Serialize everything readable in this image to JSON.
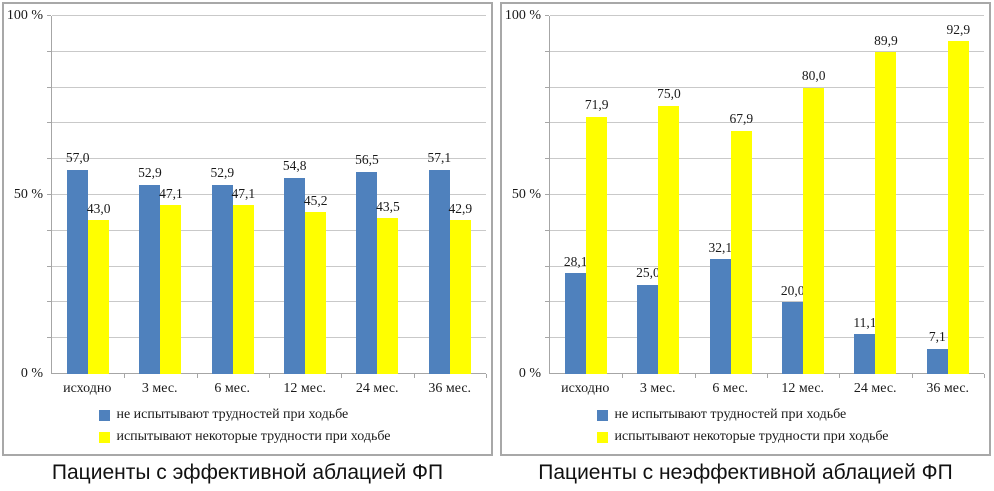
{
  "colors": {
    "blue": "#4f81bd",
    "yellow": "#ffff00",
    "gridline": "#c9c9c9",
    "axis": "#a6a6a6",
    "panel_border": "#a8a8a8",
    "text": "#1a1a1a"
  },
  "chart_data": [
    {
      "type": "bar",
      "title": "Пациенты с эффективной аблацией ФП",
      "ylim": [
        0,
        100
      ],
      "grid_step": 10,
      "y_ticks": [
        {
          "label": "100 %",
          "value": 100
        },
        {
          "label": "50 %",
          "value": 50
        },
        {
          "label": "0 %",
          "value": 0
        }
      ],
      "categories": [
        "исходно",
        "3 мес.",
        "6 мес.",
        "12 мес.",
        "24 мес.",
        "36 мес."
      ],
      "series": [
        {
          "name": "не испытывают трудностей при ходьбе",
          "color": "#4f81bd",
          "values": [
            57.0,
            52.9,
            52.9,
            54.8,
            56.5,
            57.1
          ],
          "value_labels": [
            "57,0",
            "52,9",
            "52,9",
            "54,8",
            "56,5",
            "57,1"
          ]
        },
        {
          "name": "испытывают некоторые трудности при ходьбе",
          "color": "#ffff00",
          "values": [
            43.0,
            47.1,
            47.1,
            45.2,
            43.5,
            42.9
          ],
          "value_labels": [
            "43,0",
            "47,1",
            "47,1",
            "45,2",
            "43,5",
            "42,9"
          ]
        }
      ],
      "legend_position": "bottom",
      "grid": true
    },
    {
      "type": "bar",
      "title": "Пациенты с неэффективной аблацией ФП",
      "ylim": [
        0,
        100
      ],
      "grid_step": 10,
      "y_ticks": [
        {
          "label": "100 %",
          "value": 100
        },
        {
          "label": "50 %",
          "value": 50
        },
        {
          "label": "0 %",
          "value": 0
        }
      ],
      "categories": [
        "исходно",
        "3 мес.",
        "6 мес.",
        "12 мес.",
        "24 мес.",
        "36 мес."
      ],
      "series": [
        {
          "name": "не испытывают трудностей при ходьбе",
          "color": "#4f81bd",
          "values": [
            28.1,
            25.0,
            32.1,
            20.0,
            11.1,
            7.1
          ],
          "value_labels": [
            "28,1",
            "25,0",
            "32,1",
            "20,0",
            "11,1",
            "7,1"
          ]
        },
        {
          "name": "испытывают некоторые трудности при ходьбе",
          "color": "#ffff00",
          "values": [
            71.9,
            75.0,
            67.9,
            80.0,
            89.9,
            92.9
          ],
          "value_labels": [
            "71,9",
            "75,0",
            "67,9",
            "80,0",
            "89,9",
            "92,9"
          ]
        }
      ],
      "legend_position": "bottom",
      "grid": true
    }
  ]
}
